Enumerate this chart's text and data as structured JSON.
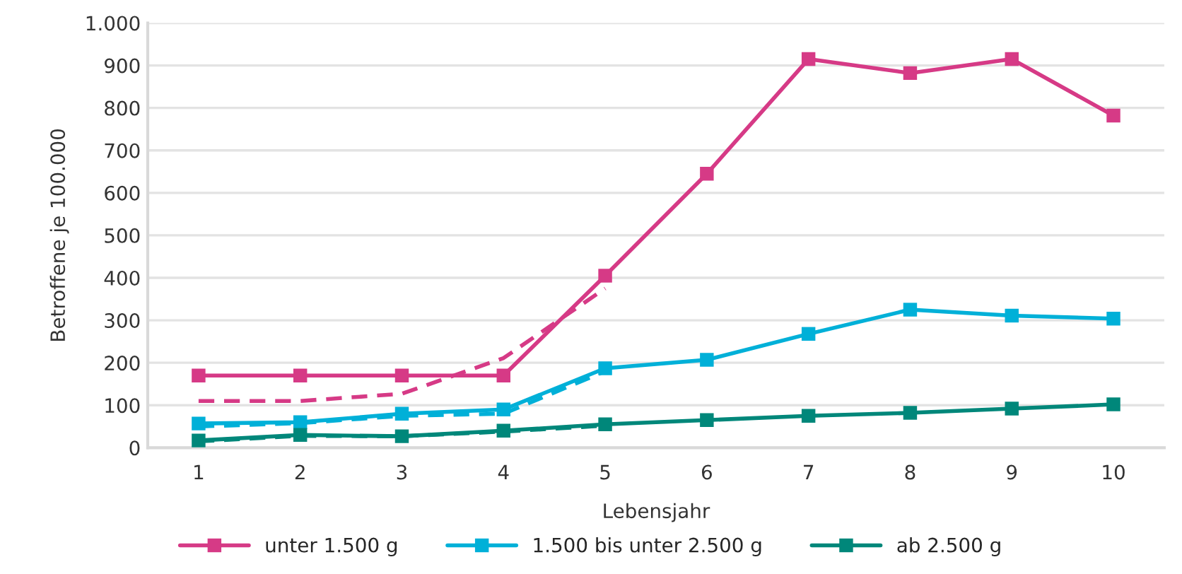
{
  "chart_data": {
    "type": "line",
    "xlabel": "Lebensjahr",
    "ylabel": "Betroffene je 100.000",
    "categories": [
      "1",
      "2",
      "3",
      "4",
      "5",
      "6",
      "7",
      "8",
      "9",
      "10"
    ],
    "series": [
      {
        "name": "unter 1.500 g",
        "color": "#d63a86",
        "values": [
          170,
          170,
          170,
          170,
          405,
          645,
          915,
          882,
          915,
          782
        ]
      },
      {
        "name": "1.500 bis unter 2.500 g",
        "color": "#00b0d8",
        "values": [
          57,
          60,
          80,
          90,
          187,
          207,
          268,
          325,
          311,
          304
        ]
      },
      {
        "name": "ab 2.500 g",
        "color": "#00877a",
        "values": [
          17,
          30,
          27,
          40,
          55,
          65,
          75,
          82,
          92,
          102
        ]
      },
      {
        "color": "#d63a86",
        "line_style": "dashed",
        "marker": "none",
        "values": [
          110,
          110,
          127,
          211,
          375,
          null,
          null,
          null,
          null,
          null
        ]
      },
      {
        "color": "#00b0d8",
        "line_style": "dashed",
        "marker": "none",
        "values": [
          50,
          58,
          75,
          80,
          180,
          null,
          null,
          null,
          null,
          null
        ]
      },
      {
        "color": "#00877a",
        "line_style": "dashed",
        "marker": "none",
        "values": [
          15,
          28,
          27,
          38,
          52,
          null,
          null,
          null,
          null,
          null
        ]
      }
    ],
    "ylim": [
      0,
      1000
    ],
    "yticks": [
      0,
      100,
      200,
      300,
      400,
      500,
      600,
      700,
      800,
      900,
      {
        "value": 1000,
        "label": "1.000"
      }
    ],
    "grid": "y",
    "legend": "bottom",
    "marker": "square",
    "line_style": "solid"
  }
}
